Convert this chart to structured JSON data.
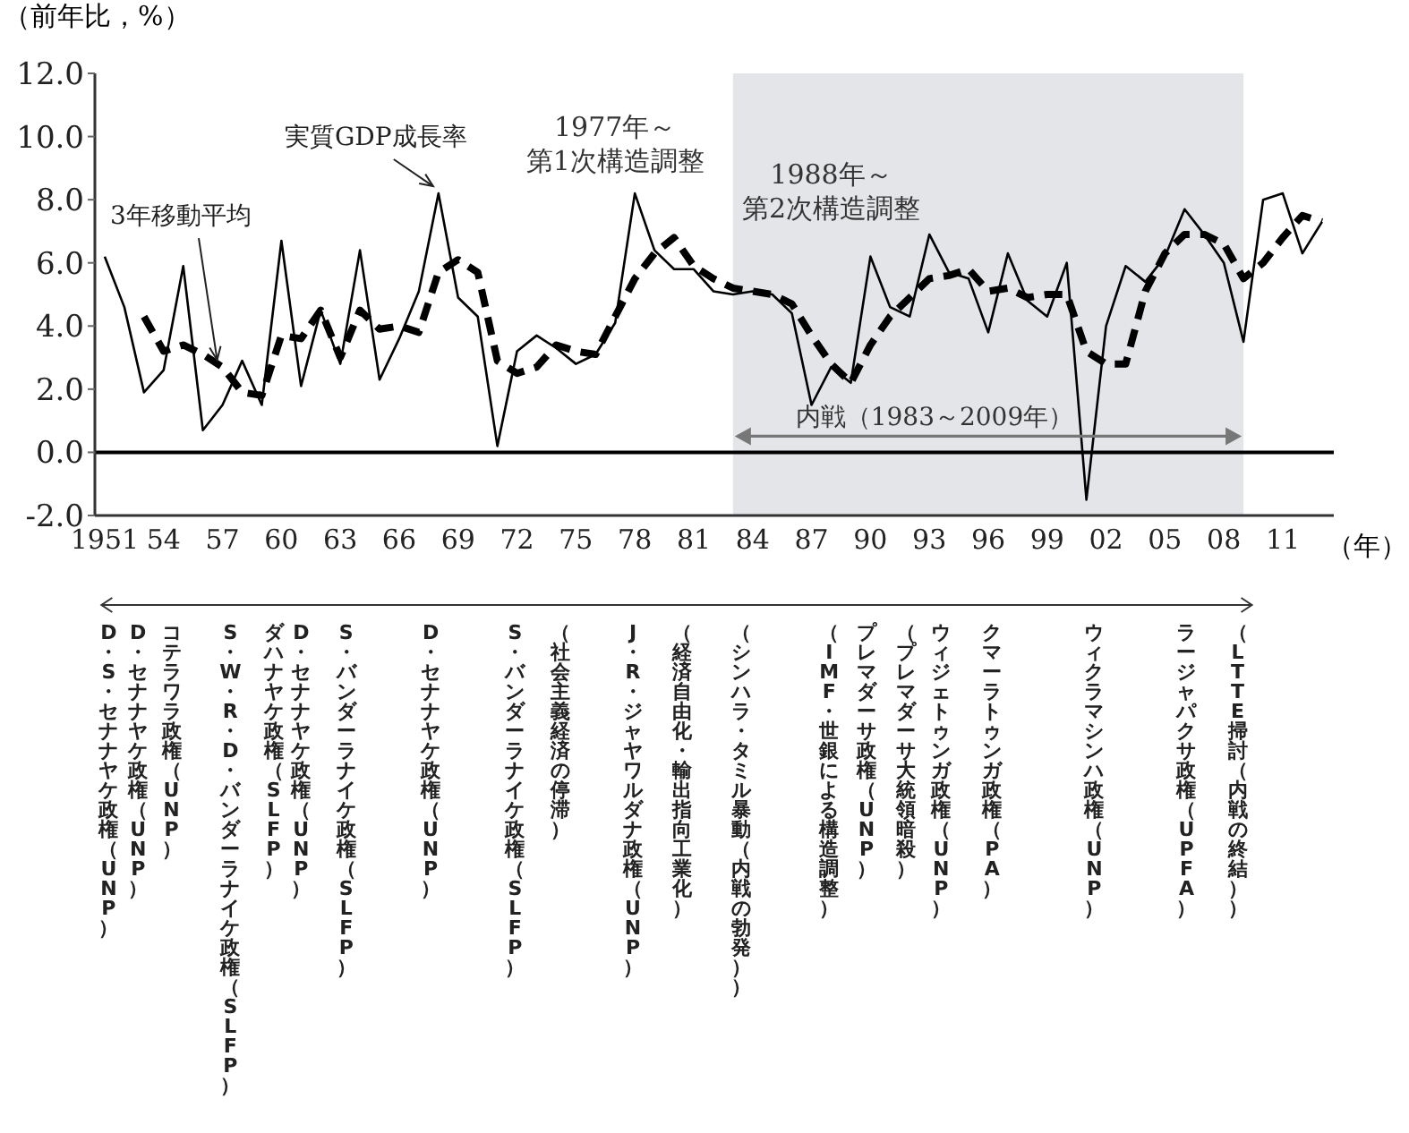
{
  "chart_data": {
    "type": "line",
    "ylabel": "（前年比，%）",
    "xlabel": "（年）",
    "x": [
      1951,
      1952,
      1953,
      1954,
      1955,
      1956,
      1957,
      1958,
      1959,
      1960,
      1961,
      1962,
      1963,
      1964,
      1965,
      1966,
      1967,
      1968,
      1969,
      1970,
      1971,
      1972,
      1973,
      1974,
      1975,
      1976,
      1977,
      1978,
      1979,
      1980,
      1981,
      1982,
      1983,
      1984,
      1985,
      1986,
      1987,
      1988,
      1989,
      1990,
      1991,
      1992,
      1993,
      1994,
      1995,
      1996,
      1997,
      1998,
      1999,
      2000,
      2001,
      2002,
      2003,
      2004,
      2005,
      2006,
      2007,
      2008,
      2009,
      2010,
      2011,
      2012,
      2013
    ],
    "series": [
      {
        "color": "#000000",
        "line_style": "solid",
        "values": [
          6.2,
          4.6,
          1.9,
          2.6,
          5.9,
          0.7,
          1.5,
          2.9,
          1.5,
          6.7,
          2.1,
          4.5,
          2.8,
          6.4,
          2.3,
          3.6,
          5.1,
          8.2,
          4.9,
          4.3,
          0.2,
          3.2,
          3.7,
          3.3,
          2.8,
          3.1,
          4.1,
          8.2,
          6.4,
          5.8,
          5.8,
          5.1,
          5.0,
          5.1,
          5.0,
          4.4,
          1.5,
          2.7,
          2.2,
          6.2,
          4.6,
          4.3,
          6.9,
          5.7,
          5.5,
          3.8,
          6.3,
          4.8,
          4.3,
          6.0,
          -1.5,
          4.0,
          5.9,
          5.4,
          6.2,
          7.7,
          6.9,
          6.0,
          3.5,
          8.0,
          8.2,
          6.3,
          7.3
        ]
      },
      {
        "color": "#000000",
        "line_style": "dashed",
        "values": [
          null,
          null,
          4.3,
          3.2,
          3.4,
          3.1,
          2.7,
          1.9,
          1.8,
          3.7,
          3.6,
          4.5,
          3.0,
          4.5,
          3.9,
          4.0,
          3.8,
          5.7,
          6.1,
          5.7,
          2.9,
          2.5,
          2.7,
          3.4,
          3.2,
          3.1,
          4.3,
          5.5,
          6.3,
          6.8,
          5.9,
          5.5,
          5.2,
          5.1,
          5.0,
          4.7,
          3.7,
          2.8,
          2.2,
          3.4,
          4.3,
          4.9,
          5.5,
          5.6,
          5.8,
          5.1,
          5.2,
          4.9,
          5.0,
          5.0,
          3.2,
          2.8,
          2.8,
          5.1,
          6.3,
          6.9,
          6.9,
          6.6,
          5.5,
          6.0,
          6.8,
          7.5,
          7.3
        ]
      }
    ],
    "xlim": [
      1950.5,
      2013.6
    ],
    "xticks": [
      {
        "value": 1951,
        "label": "1951"
      },
      {
        "value": 1954,
        "label": "54"
      },
      {
        "value": 1957,
        "label": "57"
      },
      {
        "value": 1960,
        "label": "60"
      },
      {
        "value": 1963,
        "label": "63"
      },
      {
        "value": 1966,
        "label": "66"
      },
      {
        "value": 1969,
        "label": "69"
      },
      {
        "value": 1972,
        "label": "72"
      },
      {
        "value": 1975,
        "label": "75"
      },
      {
        "value": 1978,
        "label": "78"
      },
      {
        "value": 1981,
        "label": "81"
      },
      {
        "value": 1984,
        "label": "84"
      },
      {
        "value": 1987,
        "label": "87"
      },
      {
        "value": 1990,
        "label": "90"
      },
      {
        "value": 1993,
        "label": "93"
      },
      {
        "value": 1996,
        "label": "96"
      },
      {
        "value": 1999,
        "label": "99"
      },
      {
        "value": 2002,
        "label": "02"
      },
      {
        "value": 2005,
        "label": "05"
      },
      {
        "value": 2008,
        "label": "08"
      },
      {
        "value": 2011,
        "label": "11"
      }
    ],
    "ylim": [
      -2,
      12
    ],
    "yticks": [
      {
        "value": -2,
        "label": "-2.0"
      },
      {
        "value": 0,
        "label": "0.0"
      },
      {
        "value": 2,
        "label": "2.0"
      },
      {
        "value": 4,
        "label": "4.0"
      },
      {
        "value": 6,
        "label": "6.0"
      },
      {
        "value": 8,
        "label": "8.0"
      },
      {
        "value": 10,
        "label": "10.0"
      },
      {
        "value": 12,
        "label": "12.0"
      }
    ],
    "bands": [
      {
        "axis": "x",
        "from": 1983,
        "to": 2009,
        "label": "内戦（1983～2009年）",
        "color": "#e4e5e8"
      }
    ],
    "ref_lines": [
      {
        "axis": "y",
        "value": 0,
        "color": "#000000"
      }
    ],
    "grid": false,
    "legend": false,
    "marker": "none",
    "annotations": [
      {
        "text": "実質GDP成長率",
        "x": 1968,
        "y": 8.2
      },
      {
        "text": "3年移動平均",
        "x": 1957,
        "y": 2.7
      },
      "1977年～第1次構造調整",
      "1988年～第2次構造調整",
      "D・S・セナナヤケ政権（UNP）",
      "D・セナナヤケ政権（UNP）",
      "コテラワラ政権（UNP）",
      "S・W・R・D・バンダーラナイケ政権（SLFP）",
      "ダハナヤケ政権（SLFP）",
      "D・セナナヤケ政権（UNP）",
      "S・バンダーラナイケ政権（SLFP）",
      "D・セナナヤケ政権（UNP）",
      "S・バンダーラナイケ政権（SLFP）",
      "（社会主義経済の停滞）",
      "J・R・ジャヤワルダナ政権（UNP）",
      "（経済自由化・輸出指向工業化）",
      "（シンハラ・タミル暴動（内戦の勃発））",
      "（IMF・世銀による構造調整）",
      "プレマダーサ政権（UNP）",
      "（プレマダーサ大統領暗殺）",
      "ウィジェトゥンガ政権（UNP）",
      "クマーラトゥンガ政権（PA）",
      "ウィクラマシンハ政権（UNP）",
      "ラージャパクサ政権（UPFA）",
      "（LTTE掃討（内戦の終結））"
    ]
  }
}
